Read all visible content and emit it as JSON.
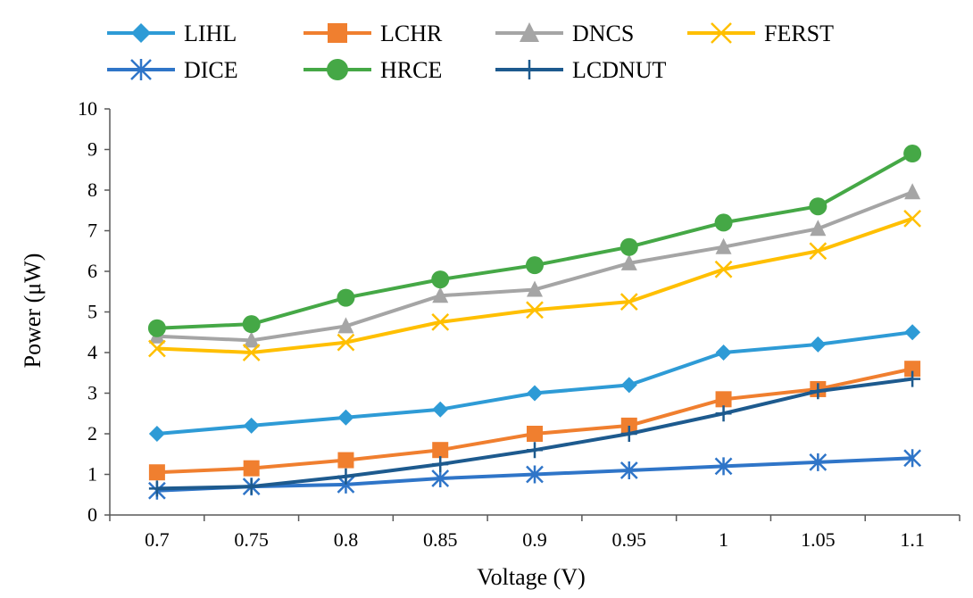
{
  "chart_data": {
    "type": "line",
    "title": "",
    "xlabel": "Voltage (V)",
    "ylabel": "Power (μW)",
    "categories": [
      "0.7",
      "0.75",
      "0.8",
      "0.85",
      "0.9",
      "0.95",
      "1",
      "1.05",
      "1.1"
    ],
    "ylim": [
      0,
      10
    ],
    "yticks": [
      0,
      1,
      2,
      3,
      4,
      5,
      6,
      7,
      8,
      9,
      10
    ],
    "ytick_labels": [
      "0",
      "1",
      "2",
      "3",
      "4",
      "5",
      "6",
      "7",
      "8",
      "9",
      "10"
    ],
    "grid": false,
    "legend_position": "top",
    "series": [
      {
        "name": "LIHL",
        "color": "#2E9BD6",
        "marker": "diamond",
        "values": [
          2.0,
          2.2,
          2.4,
          2.6,
          3.0,
          3.2,
          4.0,
          4.2,
          4.5
        ]
      },
      {
        "name": "LCHR",
        "color": "#F07F2F",
        "marker": "square",
        "values": [
          1.05,
          1.15,
          1.35,
          1.6,
          2.0,
          2.2,
          2.85,
          3.1,
          3.6
        ]
      },
      {
        "name": "DNCS",
        "color": "#A5A5A5",
        "marker": "triangle",
        "values": [
          4.4,
          4.3,
          4.65,
          5.4,
          5.55,
          6.2,
          6.6,
          7.05,
          7.95
        ]
      },
      {
        "name": "FERST",
        "color": "#FFBF00",
        "marker": "x",
        "values": [
          4.1,
          4.0,
          4.25,
          4.75,
          5.05,
          5.25,
          6.05,
          6.5,
          7.3
        ]
      },
      {
        "name": "DICE",
        "color": "#2F75C8",
        "marker": "star",
        "values": [
          0.6,
          0.7,
          0.75,
          0.9,
          1.0,
          1.1,
          1.2,
          1.3,
          1.4
        ]
      },
      {
        "name": "HRCE",
        "color": "#45A846",
        "marker": "circle",
        "values": [
          4.6,
          4.7,
          5.35,
          5.8,
          6.15,
          6.6,
          7.2,
          7.6,
          8.9
        ]
      },
      {
        "name": "LCDNUT",
        "color": "#1D5A8E",
        "marker": "plus",
        "values": [
          0.65,
          0.7,
          0.95,
          1.25,
          1.6,
          2.0,
          2.5,
          3.05,
          3.35
        ]
      }
    ]
  }
}
